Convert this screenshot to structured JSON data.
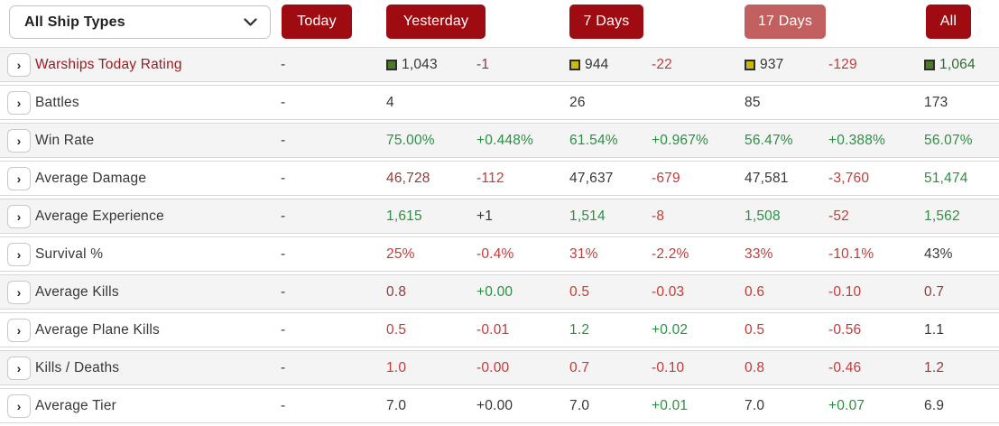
{
  "header": {
    "ship_type_filter": {
      "label": "All Ship Types",
      "state": "collapsed"
    },
    "period_buttons": [
      {
        "label": "Today",
        "variant": "solid"
      },
      {
        "label": "Yesterday",
        "variant": "solid"
      },
      {
        "label": "7 Days",
        "variant": "solid"
      },
      {
        "label": "17 Days",
        "variant": "muted"
      },
      {
        "label": "All",
        "variant": "solid"
      }
    ]
  },
  "colors": {
    "button_red": "#9e0b11",
    "button_muted_red": "#c2605f",
    "title_red": "#9b1a1e",
    "red": "#c43b38",
    "maroon": "#8e3a39",
    "green": "#2b9043",
    "darkgreen": "#2f6b33",
    "dark": "#373737",
    "square_green": "#4e7a28",
    "square_yellow": "#c9ba12"
  },
  "icons": {
    "chevron_down": "dropdown-chevron-down-icon",
    "row_expand": "chevron-right-icon",
    "rating_square_green": "rating-square-green",
    "rating_square_yellow": "rating-square-yellow"
  },
  "table": {
    "columns": [
      "Today",
      "Yesterday value",
      "Yesterday delta",
      "7 Days value",
      "7 Days delta",
      "17 Days value",
      "17 Days delta",
      "All"
    ],
    "rows": [
      {
        "label": "Warships Today Rating",
        "label_color": "title_red",
        "cells": [
          {
            "col": "today",
            "text": "-",
            "color": "dark"
          },
          {
            "col": "y_val",
            "text": "1,043",
            "color": "dark",
            "square": "green"
          },
          {
            "col": "y_del",
            "text": "-1",
            "color": "maroon"
          },
          {
            "col": "d7_val",
            "text": "944",
            "color": "dark",
            "square": "yellow"
          },
          {
            "col": "d7_del",
            "text": "-22",
            "color": "red"
          },
          {
            "col": "d17_val",
            "text": "937",
            "color": "dark",
            "square": "yellow"
          },
          {
            "col": "d17_del",
            "text": "-129",
            "color": "red"
          },
          {
            "col": "all",
            "text": "1,064",
            "color": "darkgreen",
            "square": "green"
          }
        ]
      },
      {
        "label": "Battles",
        "label_color": "dark",
        "cells": [
          {
            "col": "today",
            "text": "-",
            "color": "dark"
          },
          {
            "col": "y_val",
            "text": "4",
            "color": "dark"
          },
          {
            "col": "d7_val",
            "text": "26",
            "color": "dark"
          },
          {
            "col": "d17_val",
            "text": "85",
            "color": "dark"
          },
          {
            "col": "all",
            "text": "173",
            "color": "dark"
          }
        ]
      },
      {
        "label": "Win Rate",
        "label_color": "dark",
        "cells": [
          {
            "col": "today",
            "text": "-",
            "color": "dark"
          },
          {
            "col": "y_val",
            "text": "75.00%",
            "color": "green"
          },
          {
            "col": "y_del",
            "text": "+0.448%",
            "color": "green"
          },
          {
            "col": "d7_val",
            "text": "61.54%",
            "color": "green"
          },
          {
            "col": "d7_del",
            "text": "+0.967%",
            "color": "green"
          },
          {
            "col": "d17_val",
            "text": "56.47%",
            "color": "green"
          },
          {
            "col": "d17_del",
            "text": "+0.388%",
            "color": "green"
          },
          {
            "col": "all",
            "text": "56.07%",
            "color": "green"
          }
        ]
      },
      {
        "label": "Average Damage",
        "label_color": "dark",
        "cells": [
          {
            "col": "today",
            "text": "-",
            "color": "dark"
          },
          {
            "col": "y_val",
            "text": "46,728",
            "color": "maroon"
          },
          {
            "col": "y_del",
            "text": "-112",
            "color": "red"
          },
          {
            "col": "d7_val",
            "text": "47,637",
            "color": "dark"
          },
          {
            "col": "d7_del",
            "text": "-679",
            "color": "red"
          },
          {
            "col": "d17_val",
            "text": "47,581",
            "color": "dark"
          },
          {
            "col": "d17_del",
            "text": "-3,760",
            "color": "red"
          },
          {
            "col": "all",
            "text": "51,474",
            "color": "green"
          }
        ]
      },
      {
        "label": "Average Experience",
        "label_color": "dark",
        "cells": [
          {
            "col": "today",
            "text": "-",
            "color": "dark"
          },
          {
            "col": "y_val",
            "text": "1,615",
            "color": "green"
          },
          {
            "col": "y_del",
            "text": "+1",
            "color": "dark"
          },
          {
            "col": "d7_val",
            "text": "1,514",
            "color": "green"
          },
          {
            "col": "d7_del",
            "text": "-8",
            "color": "red"
          },
          {
            "col": "d17_val",
            "text": "1,508",
            "color": "green"
          },
          {
            "col": "d17_del",
            "text": "-52",
            "color": "red"
          },
          {
            "col": "all",
            "text": "1,562",
            "color": "green"
          }
        ]
      },
      {
        "label": "Survival %",
        "label_color": "dark",
        "cells": [
          {
            "col": "today",
            "text": "-",
            "color": "dark"
          },
          {
            "col": "y_val",
            "text": "25%",
            "color": "red"
          },
          {
            "col": "y_del",
            "text": "-0.4%",
            "color": "red"
          },
          {
            "col": "d7_val",
            "text": "31%",
            "color": "red"
          },
          {
            "col": "d7_del",
            "text": "-2.2%",
            "color": "red"
          },
          {
            "col": "d17_val",
            "text": "33%",
            "color": "red"
          },
          {
            "col": "d17_del",
            "text": "-10.1%",
            "color": "red"
          },
          {
            "col": "all",
            "text": "43%",
            "color": "dark"
          }
        ]
      },
      {
        "label": "Average Kills",
        "label_color": "dark",
        "cells": [
          {
            "col": "today",
            "text": "-",
            "color": "dark"
          },
          {
            "col": "y_val",
            "text": "0.8",
            "color": "maroon"
          },
          {
            "col": "y_del",
            "text": "+0.00",
            "color": "green"
          },
          {
            "col": "d7_val",
            "text": "0.5",
            "color": "red"
          },
          {
            "col": "d7_del",
            "text": "-0.03",
            "color": "red"
          },
          {
            "col": "d17_val",
            "text": "0.6",
            "color": "red"
          },
          {
            "col": "d17_del",
            "text": "-0.10",
            "color": "red"
          },
          {
            "col": "all",
            "text": "0.7",
            "color": "maroon"
          }
        ]
      },
      {
        "label": "Average Plane Kills",
        "label_color": "dark",
        "cells": [
          {
            "col": "today",
            "text": "-",
            "color": "dark"
          },
          {
            "col": "y_val",
            "text": "0.5",
            "color": "red"
          },
          {
            "col": "y_del",
            "text": "-0.01",
            "color": "red"
          },
          {
            "col": "d7_val",
            "text": "1.2",
            "color": "green"
          },
          {
            "col": "d7_del",
            "text": "+0.02",
            "color": "green"
          },
          {
            "col": "d17_val",
            "text": "0.5",
            "color": "red"
          },
          {
            "col": "d17_del",
            "text": "-0.56",
            "color": "red"
          },
          {
            "col": "all",
            "text": "1.1",
            "color": "dark"
          }
        ]
      },
      {
        "label": "Kills / Deaths",
        "label_color": "dark",
        "cells": [
          {
            "col": "today",
            "text": "-",
            "color": "dark"
          },
          {
            "col": "y_val",
            "text": "1.0",
            "color": "red"
          },
          {
            "col": "y_del",
            "text": "-0.00",
            "color": "red"
          },
          {
            "col": "d7_val",
            "text": "0.7",
            "color": "red"
          },
          {
            "col": "d7_del",
            "text": "-0.10",
            "color": "red"
          },
          {
            "col": "d17_val",
            "text": "0.8",
            "color": "red"
          },
          {
            "col": "d17_del",
            "text": "-0.46",
            "color": "red"
          },
          {
            "col": "all",
            "text": "1.2",
            "color": "maroon"
          }
        ]
      },
      {
        "label": "Average Tier",
        "label_color": "dark",
        "cells": [
          {
            "col": "today",
            "text": "-",
            "color": "dark"
          },
          {
            "col": "y_val",
            "text": "7.0",
            "color": "dark"
          },
          {
            "col": "y_del",
            "text": "+0.00",
            "color": "dark"
          },
          {
            "col": "d7_val",
            "text": "7.0",
            "color": "dark"
          },
          {
            "col": "d7_del",
            "text": "+0.01",
            "color": "green"
          },
          {
            "col": "d17_val",
            "text": "7.0",
            "color": "dark"
          },
          {
            "col": "d17_del",
            "text": "+0.07",
            "color": "green"
          },
          {
            "col": "all",
            "text": "6.9",
            "color": "dark"
          }
        ]
      }
    ]
  }
}
